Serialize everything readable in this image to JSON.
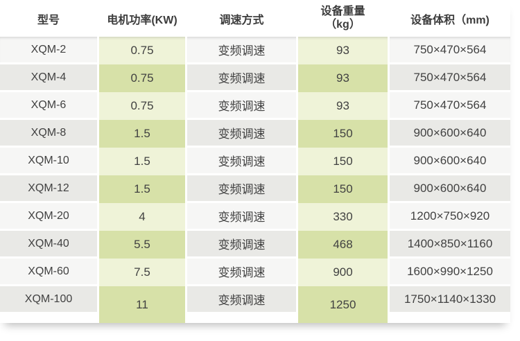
{
  "table": {
    "columns": {
      "model": "型号",
      "power": "电机功率(KW)",
      "speed": "调速方式",
      "weight_line1": "设备重量",
      "weight_line2": "（kg）",
      "volume": "设备体积（mm)"
    },
    "rows": [
      {
        "model": "XQM-2",
        "power": "0.75",
        "speed": "变频调速",
        "weight": "93",
        "volume": "750×470×564"
      },
      {
        "model": "XQM-4",
        "power": "0.75",
        "speed": "变频调速",
        "weight": "93",
        "volume": "750×470×564"
      },
      {
        "model": "XQM-6",
        "power": "0.75",
        "speed": "变频调速",
        "weight": "93",
        "volume": "750×470×564"
      },
      {
        "model": "XQM-8",
        "power": "1.5",
        "speed": "变频调速",
        "weight": "150",
        "volume": "900×600×640"
      },
      {
        "model": "XQM-10",
        "power": "1.5",
        "speed": "变频调速",
        "weight": "150",
        "volume": "900×600×640"
      },
      {
        "model": "XQM-12",
        "power": "1.5",
        "speed": "变频调速",
        "weight": "150",
        "volume": "900×600×640"
      },
      {
        "model": "XQM-20",
        "power": "4",
        "speed": "变频调速",
        "weight": "330",
        "volume": "1200×750×920"
      },
      {
        "model": "XQM-40",
        "power": "5.5",
        "speed": "变频调速",
        "weight": "468",
        "volume": "1400×850×1160"
      },
      {
        "model": "XQM-60",
        "power": "7.5",
        "speed": "变频调速",
        "weight": "900",
        "volume": "1600×990×1250"
      },
      {
        "model": "XQM-100",
        "power": "11",
        "speed": "变频调速",
        "weight": "1250",
        "volume": "1750×1140×1330"
      }
    ]
  },
  "colors": {
    "row_light": "#f6f6f5",
    "row_dark": "#e9e9e6",
    "green_light": "#eff3d8",
    "green_dark": "#d7e1a8",
    "gap": "#ffffff",
    "text": "#414141",
    "header_text": "#3c3c3c"
  }
}
